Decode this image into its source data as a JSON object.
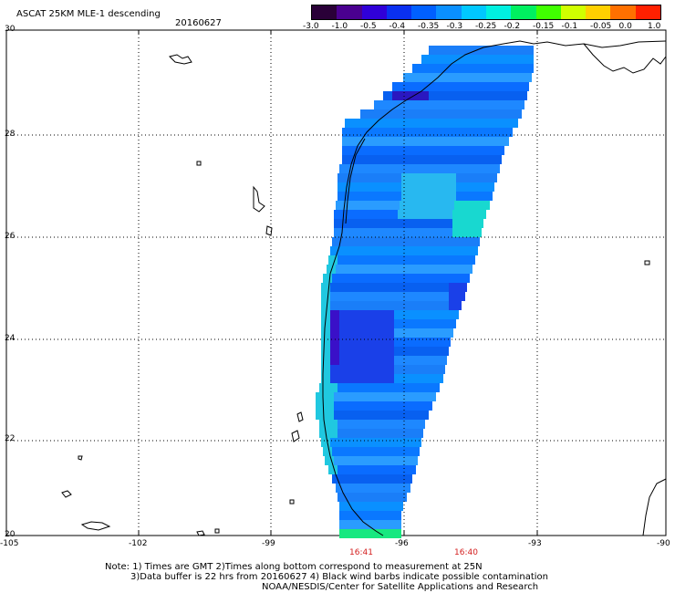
{
  "header": {
    "title": "ASCAT 25KM MLE-1 descending",
    "date": "20160627"
  },
  "colorbar": {
    "labels": [
      "-3.0",
      "-1.0",
      "-0.5",
      "-0.4",
      "-0.35",
      "-0.3",
      "-0.25",
      "-0.2",
      "-0.15",
      "-0.1",
      "-0.05",
      "0.0",
      "1.0"
    ],
    "colors": [
      "#2a0038",
      "#4a0090",
      "#3000d8",
      "#0a30f0",
      "#0060ff",
      "#0a90ff",
      "#00c8ff",
      "#00f0e0",
      "#00f060",
      "#40ff00",
      "#d0ff00",
      "#ffd000",
      "#ff7000",
      "#ff2000"
    ]
  },
  "axes": {
    "lat_labels": [
      "30",
      "28",
      "26",
      "24",
      "22",
      "20"
    ],
    "lon_labels": [
      "-105",
      "-102",
      "-99",
      "-96",
      "-93",
      "-90"
    ]
  },
  "times": [
    "16:41",
    "16:40"
  ],
  "notes": {
    "line1": "Note: 1) Times are GMT 2)Times along bottom correspond to measurement at 25N",
    "line2": "3)Data buffer is 22 hrs from 20160627 4) Black wind barbs indicate possible contamination",
    "line3": "NOAA/NESDIS/Center for Satellite Applications and Research"
  }
}
